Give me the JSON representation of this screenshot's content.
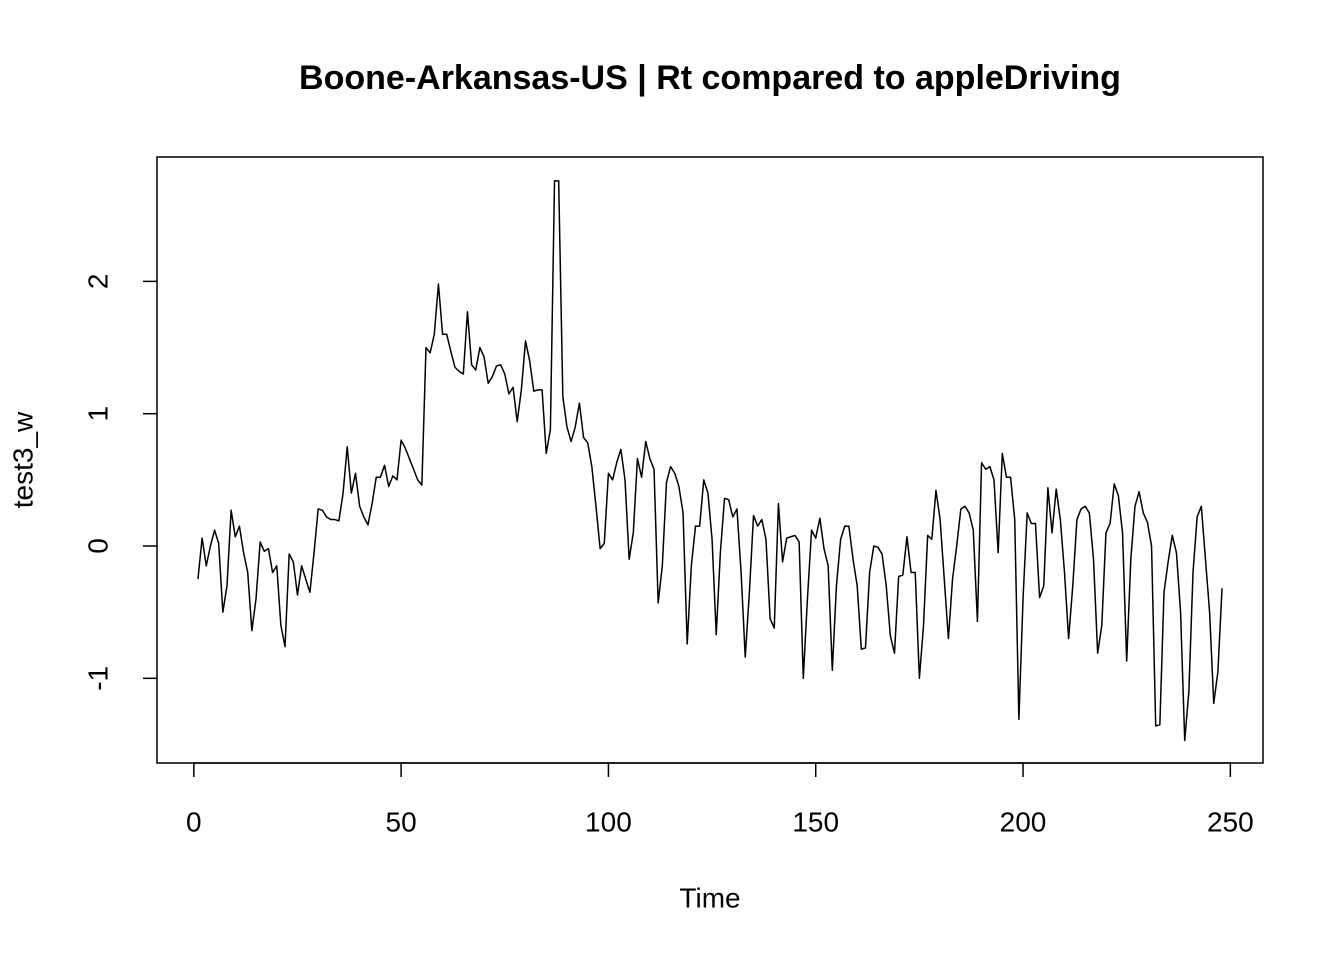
{
  "chart_data": {
    "type": "line",
    "title": "Boone-Arkansas-US | Rt compared to appleDriving",
    "xlabel": "Time",
    "ylabel": "test3_w",
    "color": "#000000",
    "xlim": [
      -8.88,
      257.88
    ],
    "ylim": [
      -1.64,
      2.94
    ],
    "xticks": [
      0,
      50,
      100,
      150,
      200,
      250
    ],
    "yticks": [
      -1,
      0,
      1,
      2
    ],
    "x": [
      1,
      2,
      3,
      4,
      5,
      6,
      7,
      8,
      9,
      10,
      11,
      12,
      13,
      14,
      15,
      16,
      17,
      18,
      19,
      20,
      21,
      22,
      23,
      24,
      25,
      26,
      27,
      28,
      29,
      30,
      31,
      32,
      33,
      34,
      35,
      36,
      37,
      38,
      39,
      40,
      41,
      42,
      43,
      44,
      45,
      46,
      47,
      48,
      49,
      50,
      51,
      52,
      53,
      54,
      55,
      56,
      57,
      58,
      59,
      60,
      61,
      62,
      63,
      64,
      65,
      66,
      67,
      68,
      69,
      70,
      71,
      72,
      73,
      74,
      75,
      76,
      77,
      78,
      79,
      80,
      81,
      82,
      83,
      84,
      85,
      86,
      87,
      88,
      89,
      90,
      91,
      92,
      93,
      94,
      95,
      96,
      97,
      98,
      99,
      100,
      101,
      102,
      103,
      104,
      105,
      106,
      107,
      108,
      109,
      110,
      111,
      112,
      113,
      114,
      115,
      116,
      117,
      118,
      119,
      120,
      121,
      122,
      123,
      124,
      125,
      126,
      127,
      128,
      129,
      130,
      131,
      132,
      133,
      134,
      135,
      136,
      137,
      138,
      139,
      140,
      141,
      142,
      143,
      144,
      145,
      146,
      147,
      148,
      149,
      150,
      151,
      152,
      153,
      154,
      155,
      156,
      157,
      158,
      159,
      160,
      161,
      162,
      163,
      164,
      165,
      166,
      167,
      168,
      169,
      170,
      171,
      172,
      173,
      174,
      175,
      176,
      177,
      178,
      179,
      180,
      181,
      182,
      183,
      184,
      185,
      186,
      187,
      188,
      189,
      190,
      191,
      192,
      193,
      194,
      195,
      196,
      197,
      198,
      199,
      200,
      201,
      202,
      203,
      204,
      205,
      206,
      207,
      208,
      209,
      210,
      211,
      212,
      213,
      214,
      215,
      216,
      217,
      218,
      219,
      220,
      221,
      222,
      223,
      224,
      225,
      226,
      227,
      228,
      229,
      230,
      231,
      232,
      233,
      234,
      235,
      236,
      237,
      238,
      239,
      240,
      241,
      242,
      243,
      244,
      245,
      246,
      247,
      248
    ],
    "values": [
      -0.25,
      0.06,
      -0.15,
      0.0,
      0.12,
      0.02,
      -0.5,
      -0.3,
      0.27,
      0.07,
      0.15,
      -0.05,
      -0.2,
      -0.64,
      -0.4,
      0.03,
      -0.04,
      -0.02,
      -0.2,
      -0.15,
      -0.6,
      -0.76,
      -0.06,
      -0.12,
      -0.37,
      -0.15,
      -0.25,
      -0.35,
      -0.05,
      0.28,
      0.27,
      0.22,
      0.2,
      0.2,
      0.19,
      0.4,
      0.75,
      0.4,
      0.55,
      0.3,
      0.22,
      0.16,
      0.32,
      0.52,
      0.52,
      0.61,
      0.45,
      0.53,
      0.5,
      0.8,
      0.74,
      0.66,
      0.58,
      0.5,
      0.46,
      1.5,
      1.46,
      1.6,
      1.98,
      1.6,
      1.6,
      1.47,
      1.35,
      1.32,
      1.3,
      1.77,
      1.37,
      1.33,
      1.5,
      1.43,
      1.23,
      1.28,
      1.36,
      1.37,
      1.3,
      1.15,
      1.2,
      0.94,
      1.18,
      1.55,
      1.4,
      1.17,
      1.18,
      1.18,
      0.7,
      0.88,
      2.76,
      2.76,
      1.13,
      0.9,
      0.79,
      0.9,
      1.08,
      0.82,
      0.78,
      0.6,
      0.3,
      -0.02,
      0.02,
      0.55,
      0.5,
      0.63,
      0.73,
      0.5,
      -0.1,
      0.1,
      0.66,
      0.52,
      0.79,
      0.66,
      0.58,
      -0.43,
      -0.15,
      0.48,
      0.6,
      0.55,
      0.45,
      0.25,
      -0.74,
      -0.15,
      0.15,
      0.15,
      0.5,
      0.4,
      0.05,
      -0.67,
      -0.05,
      0.36,
      0.35,
      0.22,
      0.28,
      -0.2,
      -0.84,
      -0.35,
      0.23,
      0.15,
      0.2,
      0.05,
      -0.55,
      -0.62,
      0.32,
      -0.12,
      0.06,
      0.07,
      0.08,
      0.03,
      -1.0,
      -0.4,
      0.12,
      0.06,
      0.21,
      -0.02,
      -0.15,
      -0.94,
      -0.3,
      0.05,
      0.15,
      0.15,
      -0.1,
      -0.3,
      -0.78,
      -0.77,
      -0.2,
      0.0,
      -0.01,
      -0.06,
      -0.3,
      -0.68,
      -0.81,
      -0.23,
      -0.22,
      0.07,
      -0.2,
      -0.2,
      -1.0,
      -0.6,
      0.08,
      0.05,
      0.42,
      0.2,
      -0.25,
      -0.7,
      -0.25,
      0.0,
      0.28,
      0.3,
      0.25,
      0.12,
      -0.57,
      0.63,
      0.58,
      0.6,
      0.5,
      -0.05,
      0.7,
      0.52,
      0.52,
      0.2,
      -1.31,
      -0.4,
      0.25,
      0.17,
      0.17,
      -0.39,
      -0.3,
      0.44,
      0.1,
      0.43,
      0.2,
      -0.2,
      -0.7,
      -0.3,
      0.2,
      0.28,
      0.3,
      0.25,
      -0.1,
      -0.81,
      -0.6,
      0.1,
      0.17,
      0.47,
      0.38,
      0.1,
      -0.87,
      -0.1,
      0.3,
      0.41,
      0.25,
      0.18,
      0.0,
      -1.36,
      -1.35,
      -0.35,
      -0.12,
      0.08,
      -0.05,
      -0.5,
      -1.47,
      -1.1,
      -0.2,
      0.22,
      0.3,
      -0.1,
      -0.5,
      -1.19,
      -0.95,
      -0.32
    ]
  }
}
